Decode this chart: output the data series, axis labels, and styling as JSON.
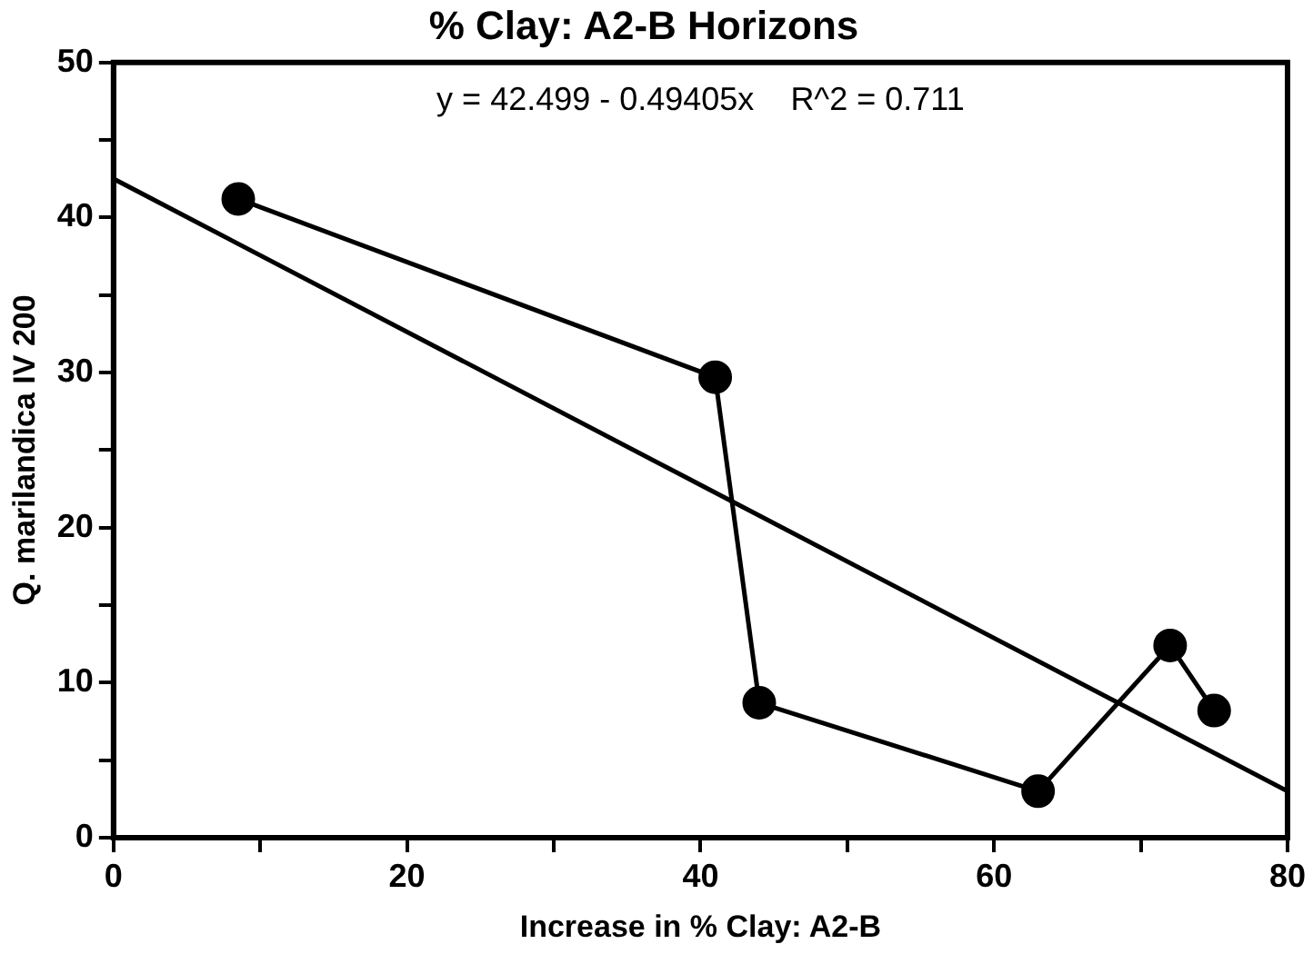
{
  "chart_data": {
    "type": "line",
    "title": "% Clay: A2-B Horizons",
    "xlabel": "Increase in % Clay: A2-B",
    "ylabel": "Q. marilandica IV 200",
    "annotations": [
      "y = 42.499 - 0.49405x    R^2 = 0.711"
    ],
    "series": [
      {
        "color": "#000000",
        "x": [
          8.5,
          41,
          44,
          63,
          72,
          75
        ],
        "values": [
          41.2,
          29.7,
          8.7,
          3,
          12.4,
          8.2
        ],
        "marker": "circle"
      },
      {
        "type": "line",
        "color": "#000000",
        "x": [
          0,
          80
        ],
        "values": [
          42.5,
          3
        ],
        "marker": "none"
      }
    ],
    "xlim": [
      0,
      80
    ],
    "xticks": [
      0,
      {
        "value": 10,
        "label": null
      },
      20,
      {
        "value": 30,
        "label": null
      },
      40,
      {
        "value": 50,
        "label": null
      },
      60,
      {
        "value": 70,
        "label": null
      },
      80
    ],
    "ylim": [
      0,
      50
    ],
    "yticks": [
      0,
      {
        "value": 5,
        "label": null
      },
      10,
      {
        "value": 15,
        "label": null
      },
      20,
      {
        "value": 25,
        "label": null
      },
      30,
      {
        "value": 35,
        "label": null
      },
      40,
      {
        "value": 45,
        "label": null
      },
      50
    ],
    "grid": false,
    "legend": false,
    "line_style": "solid"
  }
}
